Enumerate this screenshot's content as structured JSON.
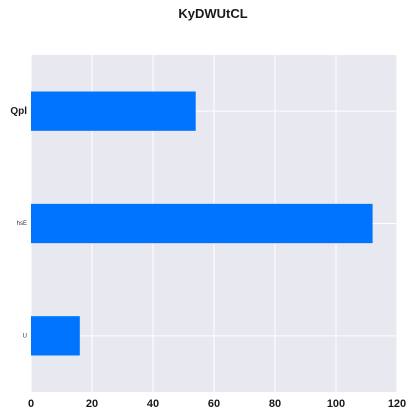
{
  "chart_data": {
    "type": "bar",
    "orientation": "horizontal",
    "title": "KyDWUtCL",
    "categories": [
      "Qpl",
      "hsE",
      "U"
    ],
    "values": [
      54,
      112,
      16
    ],
    "xlim": [
      0,
      120
    ],
    "xticks": [
      0,
      20,
      40,
      60,
      80,
      100,
      120
    ],
    "xlabel": "",
    "ylabel": "",
    "grid": true,
    "colors": {
      "bar": "#0074ff",
      "plot_background": "#e8e8f0",
      "grid": "#ffffff"
    }
  }
}
